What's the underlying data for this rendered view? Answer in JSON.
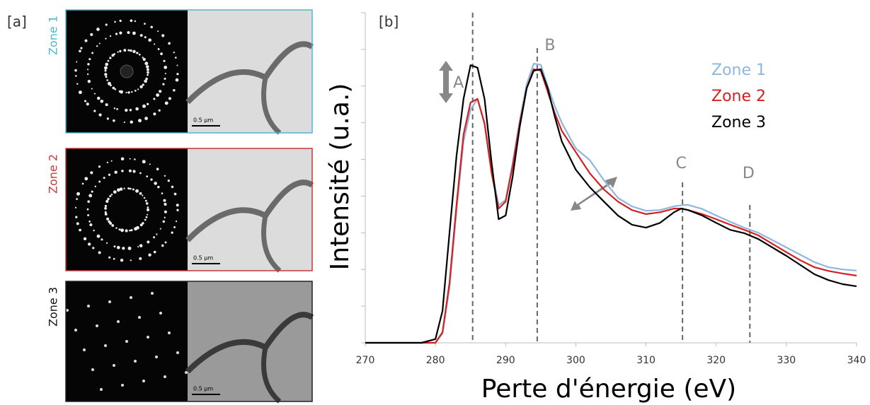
{
  "panel_a": {
    "label": "[a]",
    "zones": [
      {
        "label": "Zone 1",
        "scale": "0.5 µm"
      },
      {
        "label": "Zone 2",
        "scale": "0.5 µm"
      },
      {
        "label": "Zone 3",
        "scale": "0.5 µm"
      }
    ]
  },
  "chart_data": {
    "type": "line",
    "panel_label": "[b]",
    "x_label": "Perte d'énergie (eV)",
    "y_label": "Intensité (u.a.)",
    "xlim": [
      270,
      340
    ],
    "xticks": [
      270,
      280,
      290,
      300,
      310,
      320,
      330,
      340
    ],
    "ylim": [
      0,
      9
    ],
    "yticks": [
      0,
      1,
      2,
      3,
      4,
      5,
      6,
      7,
      8,
      9
    ],
    "x": [
      270,
      275,
      278,
      280,
      281,
      282,
      283,
      284,
      285,
      286,
      287,
      288,
      289,
      290,
      291,
      292,
      293,
      294,
      295,
      296,
      297,
      298,
      300,
      302,
      304,
      306,
      308,
      310,
      312,
      314,
      315,
      316,
      318,
      320,
      322,
      324,
      326,
      328,
      330,
      332,
      334,
      336,
      338,
      340
    ],
    "series": [
      {
        "name": "Zone 1",
        "color": "#8fb6dc",
        "values": [
          0,
          0,
          0,
          0,
          0.25,
          1.5,
          3.6,
          5.49,
          6.36,
          6.65,
          6.0,
          4.7,
          3.75,
          3.9,
          4.9,
          6.05,
          7.05,
          7.61,
          7.58,
          7.0,
          6.45,
          6.0,
          5.3,
          4.98,
          4.43,
          3.95,
          3.72,
          3.6,
          3.62,
          3.72,
          3.75,
          3.76,
          3.65,
          3.47,
          3.3,
          3.14,
          3.0,
          2.8,
          2.6,
          2.4,
          2.2,
          2.06,
          2.0,
          1.97
        ]
      },
      {
        "name": "Zone 2",
        "color": "#d42020",
        "values": [
          0,
          0,
          0,
          0,
          0.29,
          1.64,
          3.76,
          5.68,
          6.55,
          6.65,
          5.97,
          4.62,
          3.66,
          3.85,
          4.82,
          5.97,
          6.94,
          7.46,
          7.42,
          6.84,
          6.26,
          5.78,
          5.2,
          4.62,
          4.18,
          3.85,
          3.62,
          3.51,
          3.56,
          3.66,
          3.66,
          3.62,
          3.51,
          3.37,
          3.22,
          3.08,
          2.93,
          2.7,
          2.47,
          2.25,
          2.06,
          1.96,
          1.89,
          1.83
        ]
      },
      {
        "name": "Zone 3",
        "color": "#000000",
        "values": [
          0,
          0,
          0,
          0.1,
          0.87,
          3.0,
          5.1,
          6.65,
          7.57,
          7.5,
          6.65,
          4.9,
          3.37,
          3.47,
          4.53,
          5.88,
          6.94,
          7.42,
          7.46,
          6.94,
          6.17,
          5.49,
          4.72,
          4.24,
          3.85,
          3.47,
          3.22,
          3.14,
          3.27,
          3.56,
          3.66,
          3.62,
          3.47,
          3.27,
          3.08,
          2.99,
          2.83,
          2.6,
          2.37,
          2.12,
          1.87,
          1.71,
          1.6,
          1.54
        ]
      }
    ],
    "markers": [
      {
        "label": "A",
        "x": 285.3
      },
      {
        "label": "B",
        "x": 294.5
      },
      {
        "label": "C",
        "x": 315.2
      },
      {
        "label": "D",
        "x": 324.8
      }
    ]
  }
}
